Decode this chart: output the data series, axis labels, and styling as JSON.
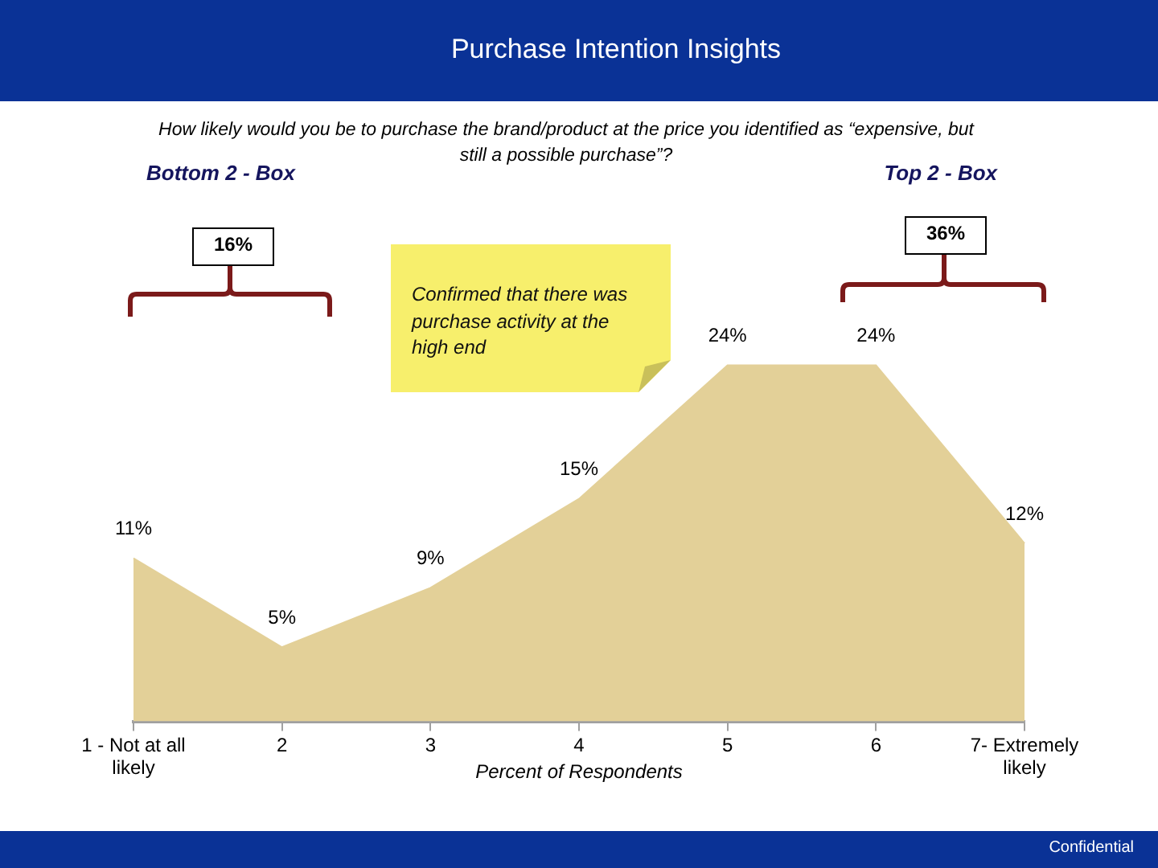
{
  "chart_data": {
    "type": "area",
    "title": "Purchase Intention Insights",
    "subtitle": "How likely would you be to purchase the brand/product at the price you identified as “expensive, but still a possible purchase”?",
    "xlabel": "Percent of Respondents",
    "categories": [
      "1 - Not at all likely",
      "2",
      "3",
      "4",
      "5",
      "6",
      "7- Extremely likely"
    ],
    "values": [
      11,
      5,
      9,
      15,
      24,
      24,
      12
    ],
    "value_labels": [
      "11%",
      "5%",
      "9%",
      "15%",
      "24%",
      "24%",
      "12%"
    ],
    "color": "#e3d098",
    "tick_labels": "x",
    "annotations": [
      "Bottom 2 - Box",
      "16%",
      "Top 2 - Box",
      "36%",
      "Confirmed that there was purchase activity at the high end",
      "Confidential"
    ]
  }
}
